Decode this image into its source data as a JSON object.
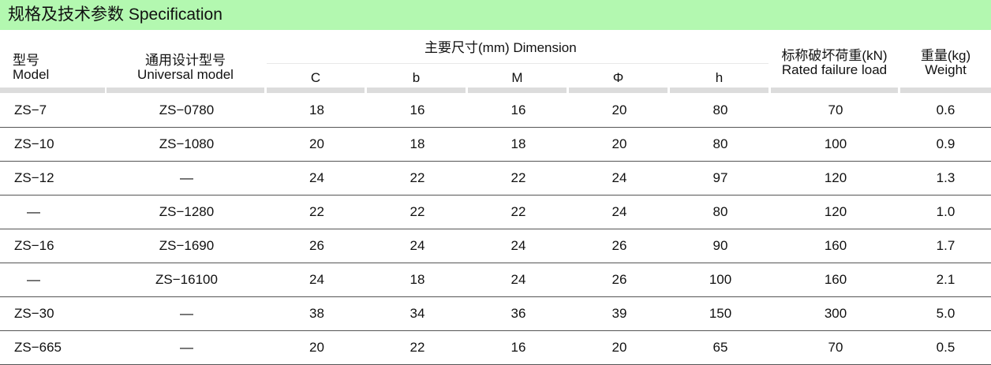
{
  "title": "规格及技术参数  Specification",
  "headers": {
    "model_cn": "型号",
    "model_en": "Model",
    "universal_cn": "通用设计型号",
    "universal_en": "Universal  model",
    "dimension": "主要尺寸(mm)  Dimension",
    "dims": [
      "C",
      "b",
      "M",
      "Φ",
      "h"
    ],
    "load_cn": "标称破坏荷重(kN)",
    "load_en": "Rated failure load",
    "weight_cn": "重量(kg)",
    "weight_en": "Weight"
  },
  "rows": [
    [
      "ZS−7",
      "ZS−0780",
      "18",
      "16",
      "16",
      "20",
      "80",
      "70",
      "0.6"
    ],
    [
      "ZS−10",
      "ZS−1080",
      "20",
      "18",
      "18",
      "20",
      "80",
      "100",
      "0.9"
    ],
    [
      "ZS−12",
      "—",
      "24",
      "22",
      "22",
      "24",
      "97",
      "120",
      "1.3"
    ],
    [
      "—",
      "ZS−1280",
      "22",
      "22",
      "22",
      "24",
      "80",
      "120",
      "1.0"
    ],
    [
      "ZS−16",
      "ZS−1690",
      "26",
      "24",
      "24",
      "26",
      "90",
      "160",
      "1.7"
    ],
    [
      "—",
      "ZS−16100",
      "24",
      "18",
      "24",
      "26",
      "100",
      "160",
      "2.1"
    ],
    [
      "ZS−30",
      "—",
      "38",
      "34",
      "36",
      "39",
      "150",
      "300",
      "5.0"
    ],
    [
      "ZS−665",
      "—",
      "20",
      "22",
      "16",
      "20",
      "65",
      "70",
      "0.5"
    ]
  ]
}
